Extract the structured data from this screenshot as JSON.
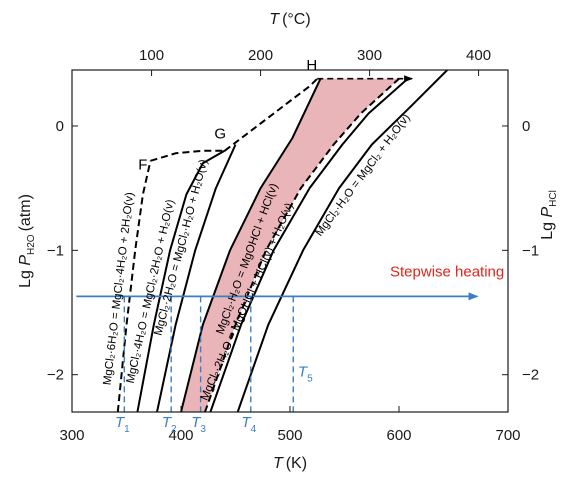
{
  "chart_data": {
    "type": "line",
    "x_bottom": {
      "label": "T",
      "unit": "(K)",
      "range": [
        300,
        700
      ],
      "ticks": [
        300,
        400,
        500,
        600,
        700
      ]
    },
    "x_top": {
      "label": "T",
      "unit": "(°C)",
      "ticks": [
        100,
        200,
        300,
        400
      ]
    },
    "y_left": {
      "label_prefix": "Lg ",
      "label_symbol": "P",
      "label_sub": "H2O",
      "unit": "(atm)",
      "range": [
        -2.3,
        0.45
      ],
      "ticks": [
        0,
        -1,
        -2
      ],
      "tick_labels": [
        "0",
        "−1",
        "−2"
      ]
    },
    "y_right": {
      "label_prefix": "Lg ",
      "label_symbol": "P",
      "label_sub": "HCl",
      "ticks": [
        0,
        -1,
        -2
      ],
      "tick_labels": [
        "0",
        "−1",
        "−2"
      ]
    },
    "series": [
      {
        "id": "hex",
        "name": "MgCl₂·6H₂O = MgCl₂·4H₂O + 2H₂O(v)",
        "style": "dashed",
        "points": [
          [
            342,
            -2.3
          ],
          [
            350,
            -1.6
          ],
          [
            358,
            -1.0
          ],
          [
            365,
            -0.55
          ],
          [
            372,
            -0.28
          ]
        ]
      },
      {
        "id": "tetra",
        "name": "MgCl₂·4H₂O = MgCl₂·2H₂O + H₂O(v)",
        "style": "solid",
        "points": [
          [
            360,
            -2.3
          ],
          [
            375,
            -1.6
          ],
          [
            390,
            -1.0
          ],
          [
            405,
            -0.55
          ],
          [
            420,
            -0.3
          ],
          [
            440,
            -0.2
          ]
        ]
      },
      {
        "id": "di",
        "name": "MgCl₂·2H₂O = MgCl₂·H₂O + H₂O(v)",
        "style": "solid",
        "points": [
          [
            378,
            -2.3
          ],
          [
            395,
            -1.6
          ],
          [
            413,
            -1.0
          ],
          [
            432,
            -0.5
          ],
          [
            450,
            -0.15
          ]
        ]
      },
      {
        "id": "FG",
        "style": "dashed",
        "points": [
          [
            372,
            -0.28
          ],
          [
            395,
            -0.22
          ],
          [
            420,
            -0.2
          ],
          [
            440,
            -0.2
          ]
        ]
      },
      {
        "id": "GH",
        "style": "dashed",
        "points": [
          [
            440,
            -0.2
          ],
          [
            470,
            0.0
          ],
          [
            500,
            0.2
          ],
          [
            518,
            0.32
          ],
          [
            525,
            0.38
          ]
        ]
      },
      {
        "id": "hyd-mono-left",
        "name": "MgCl₂·H₂O = MgOHCl + HCl(v)",
        "style": "solid",
        "points": [
          [
            400,
            -2.3
          ],
          [
            420,
            -1.6
          ],
          [
            445,
            -1.0
          ],
          [
            473,
            -0.5
          ],
          [
            502,
            -0.1
          ],
          [
            528,
            0.38
          ]
        ]
      },
      {
        "id": "hyd-mono-right",
        "style": "dashed",
        "points": [
          [
            422,
            -2.3
          ],
          [
            450,
            -1.6
          ],
          [
            478,
            -1.0
          ],
          [
            510,
            -0.5
          ],
          [
            540,
            -0.15
          ],
          [
            565,
            0.1
          ],
          [
            600,
            0.38
          ]
        ]
      },
      {
        "id": "hyd-di",
        "name": "MgCl₂·2H₂O = MgOHCl + HCl(v) + H₂O(v)",
        "style": "solid",
        "points": [
          [
            427,
            -2.3
          ],
          [
            455,
            -1.6
          ],
          [
            485,
            -1.0
          ],
          [
            518,
            -0.5
          ],
          [
            548,
            -0.15
          ],
          [
            572,
            0.1
          ],
          [
            608,
            0.38
          ]
        ]
      },
      {
        "id": "mono-dehyd",
        "name": "MgCl₂·H₂O = MgCl₂ + H₂O(v)",
        "style": "solid",
        "points": [
          [
            452,
            -2.3
          ],
          [
            480,
            -1.6
          ],
          [
            512,
            -1.0
          ],
          [
            545,
            -0.5
          ],
          [
            575,
            -0.15
          ],
          [
            610,
            0.15
          ],
          [
            650,
            0.5
          ]
        ]
      }
    ],
    "shaded_region": {
      "color": "#eab5b8",
      "left_boundary": "hyd-mono-left",
      "right_boundary": "hyd-mono-right"
    },
    "top_arrow": {
      "from": [
        525,
        0.38
      ],
      "to": [
        612,
        0.38
      ]
    },
    "point_labels": [
      {
        "text": "F",
        "at": [
          365,
          -0.35
        ]
      },
      {
        "text": "G",
        "at": [
          436,
          -0.1
        ]
      },
      {
        "text": "H",
        "at": [
          520,
          0.45
        ]
      }
    ],
    "heating_arrow": {
      "label": "Stepwise heating",
      "label_color": "#e0251b",
      "y": -1.37,
      "x_from": 304,
      "x_to": 672,
      "color": "#3a7fc4"
    },
    "temperature_markers": [
      {
        "label": "T",
        "sub": "1",
        "x": 348,
        "top_y": -1.37
      },
      {
        "label": "T",
        "sub": "2",
        "x": 391,
        "top_y": -1.37
      },
      {
        "label": "T",
        "sub": "3",
        "x": 418,
        "top_y": -1.37
      },
      {
        "label": "T",
        "sub": "4",
        "x": 464,
        "top_y": -1.37
      },
      {
        "label": "T",
        "sub": "5",
        "x": 503,
        "top_y": -1.37
      }
    ],
    "colors": {
      "axis": "#1a1a1a",
      "curve": "#000000",
      "blue": "#3a7fc4",
      "red_text": "#e0251b"
    }
  }
}
